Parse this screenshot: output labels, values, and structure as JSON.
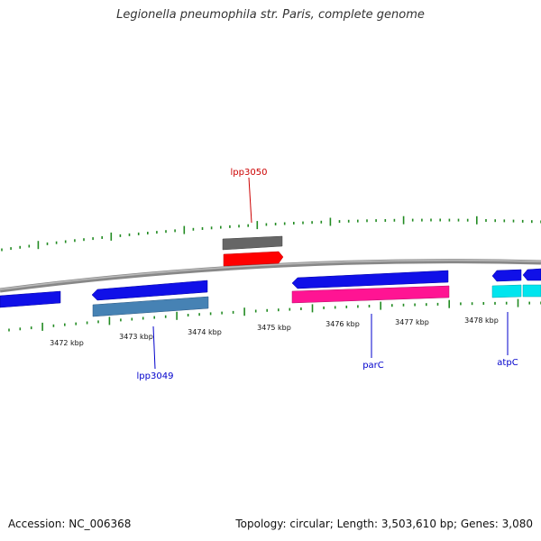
{
  "title": "Legionella pneumophila str. Paris, complete genome",
  "footer": {
    "accession": "Accession: NC_006368",
    "summary": "Topology: circular; Length: 3,503,610 bp; Genes: 3,080"
  },
  "scale_labels": [
    "3472 kbp",
    "3473 kbp",
    "3474 kbp",
    "3475 kbp",
    "3476 kbp",
    "3477 kbp",
    "3478 kbp"
  ],
  "gene_labels": [
    {
      "name": "lpp3050",
      "color": "#cc0000"
    },
    {
      "name": "lpp3049",
      "color": "#0000cc"
    },
    {
      "name": "parC",
      "color": "#0000cc"
    },
    {
      "name": "atpC",
      "color": "#0000cc"
    }
  ],
  "colors": {
    "backbone": "#888888",
    "tick": "#228b22",
    "cds_blue": "#1010e8",
    "gene_red": "#ff0000",
    "gene_gray": "#666666",
    "gene_steel": "#4682b4",
    "gene_magenta": "#ff1493",
    "gene_cyan": "#00e5ee"
  }
}
